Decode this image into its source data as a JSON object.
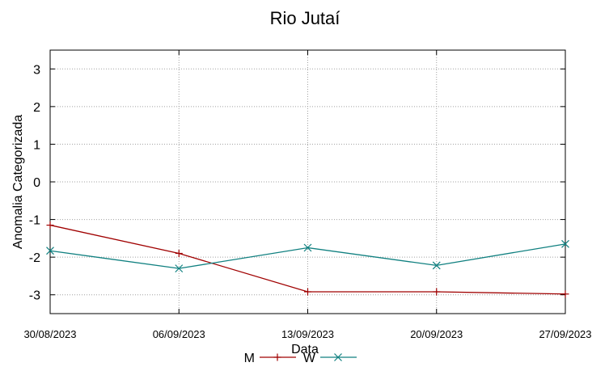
{
  "chart_data": {
    "type": "line",
    "title": "Rio Jutaí",
    "xlabel": "Data",
    "ylabel": "Anomalia Categorizada",
    "x": [
      "30/08/2023",
      "06/09/2023",
      "13/09/2023",
      "20/09/2023",
      "27/09/2023"
    ],
    "y_ticks": [
      3,
      2,
      1,
      0,
      -1,
      -2,
      -3
    ],
    "ylim": [
      -3.5,
      3.5
    ],
    "grid": true,
    "legend_position": "bottom-center",
    "series": [
      {
        "name": "M",
        "color": "#a00000",
        "marker": "plus",
        "values": [
          -1.15,
          -1.9,
          -2.92,
          -2.92,
          -2.98
        ]
      },
      {
        "name": "W",
        "color": "#108080",
        "marker": "x",
        "values": [
          -1.83,
          -2.3,
          -1.75,
          -2.22,
          -1.65
        ]
      }
    ]
  }
}
